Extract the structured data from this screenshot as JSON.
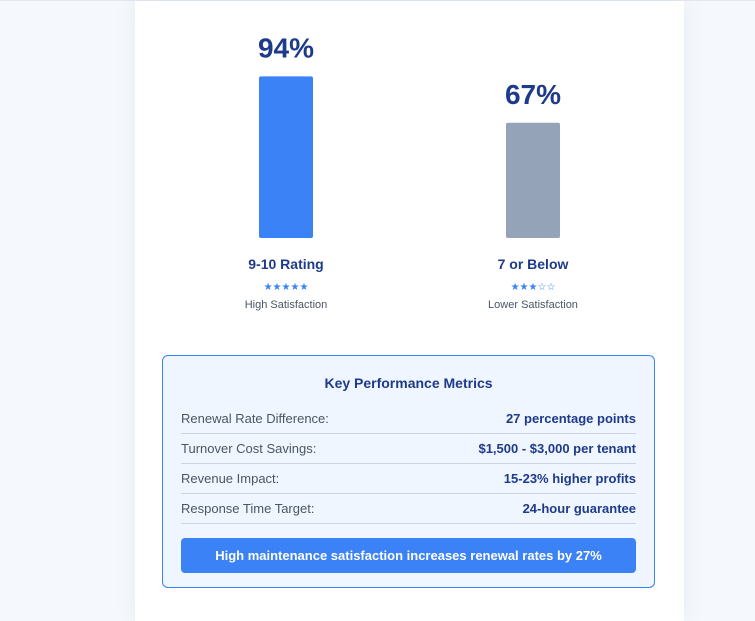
{
  "chart_data": {
    "type": "bar",
    "categories": [
      "9-10 Rating",
      "7 or Below"
    ],
    "values": [
      94,
      67
    ],
    "value_labels": [
      "94%",
      "67%"
    ],
    "stars": [
      "★★★★★",
      "★★★☆☆"
    ],
    "sublabels": [
      "High Satisfaction",
      "Lower Satisfaction"
    ],
    "colors": [
      "#3b82f6",
      "#94a3b8"
    ],
    "ylim": [
      0,
      100
    ],
    "grid": false
  },
  "metrics": {
    "title": "Key Performance Metrics",
    "rows": [
      {
        "label": "Renewal Rate Difference:",
        "value": "27 percentage points"
      },
      {
        "label": "Turnover Cost Savings:",
        "value": "$1,500 - $3,000 per tenant"
      },
      {
        "label": "Revenue Impact:",
        "value": "15-23% higher profits"
      },
      {
        "label": "Response Time Target:",
        "value": "24-hour guarantee"
      }
    ],
    "cta": "High maintenance satisfaction increases renewal rates by 27%"
  }
}
